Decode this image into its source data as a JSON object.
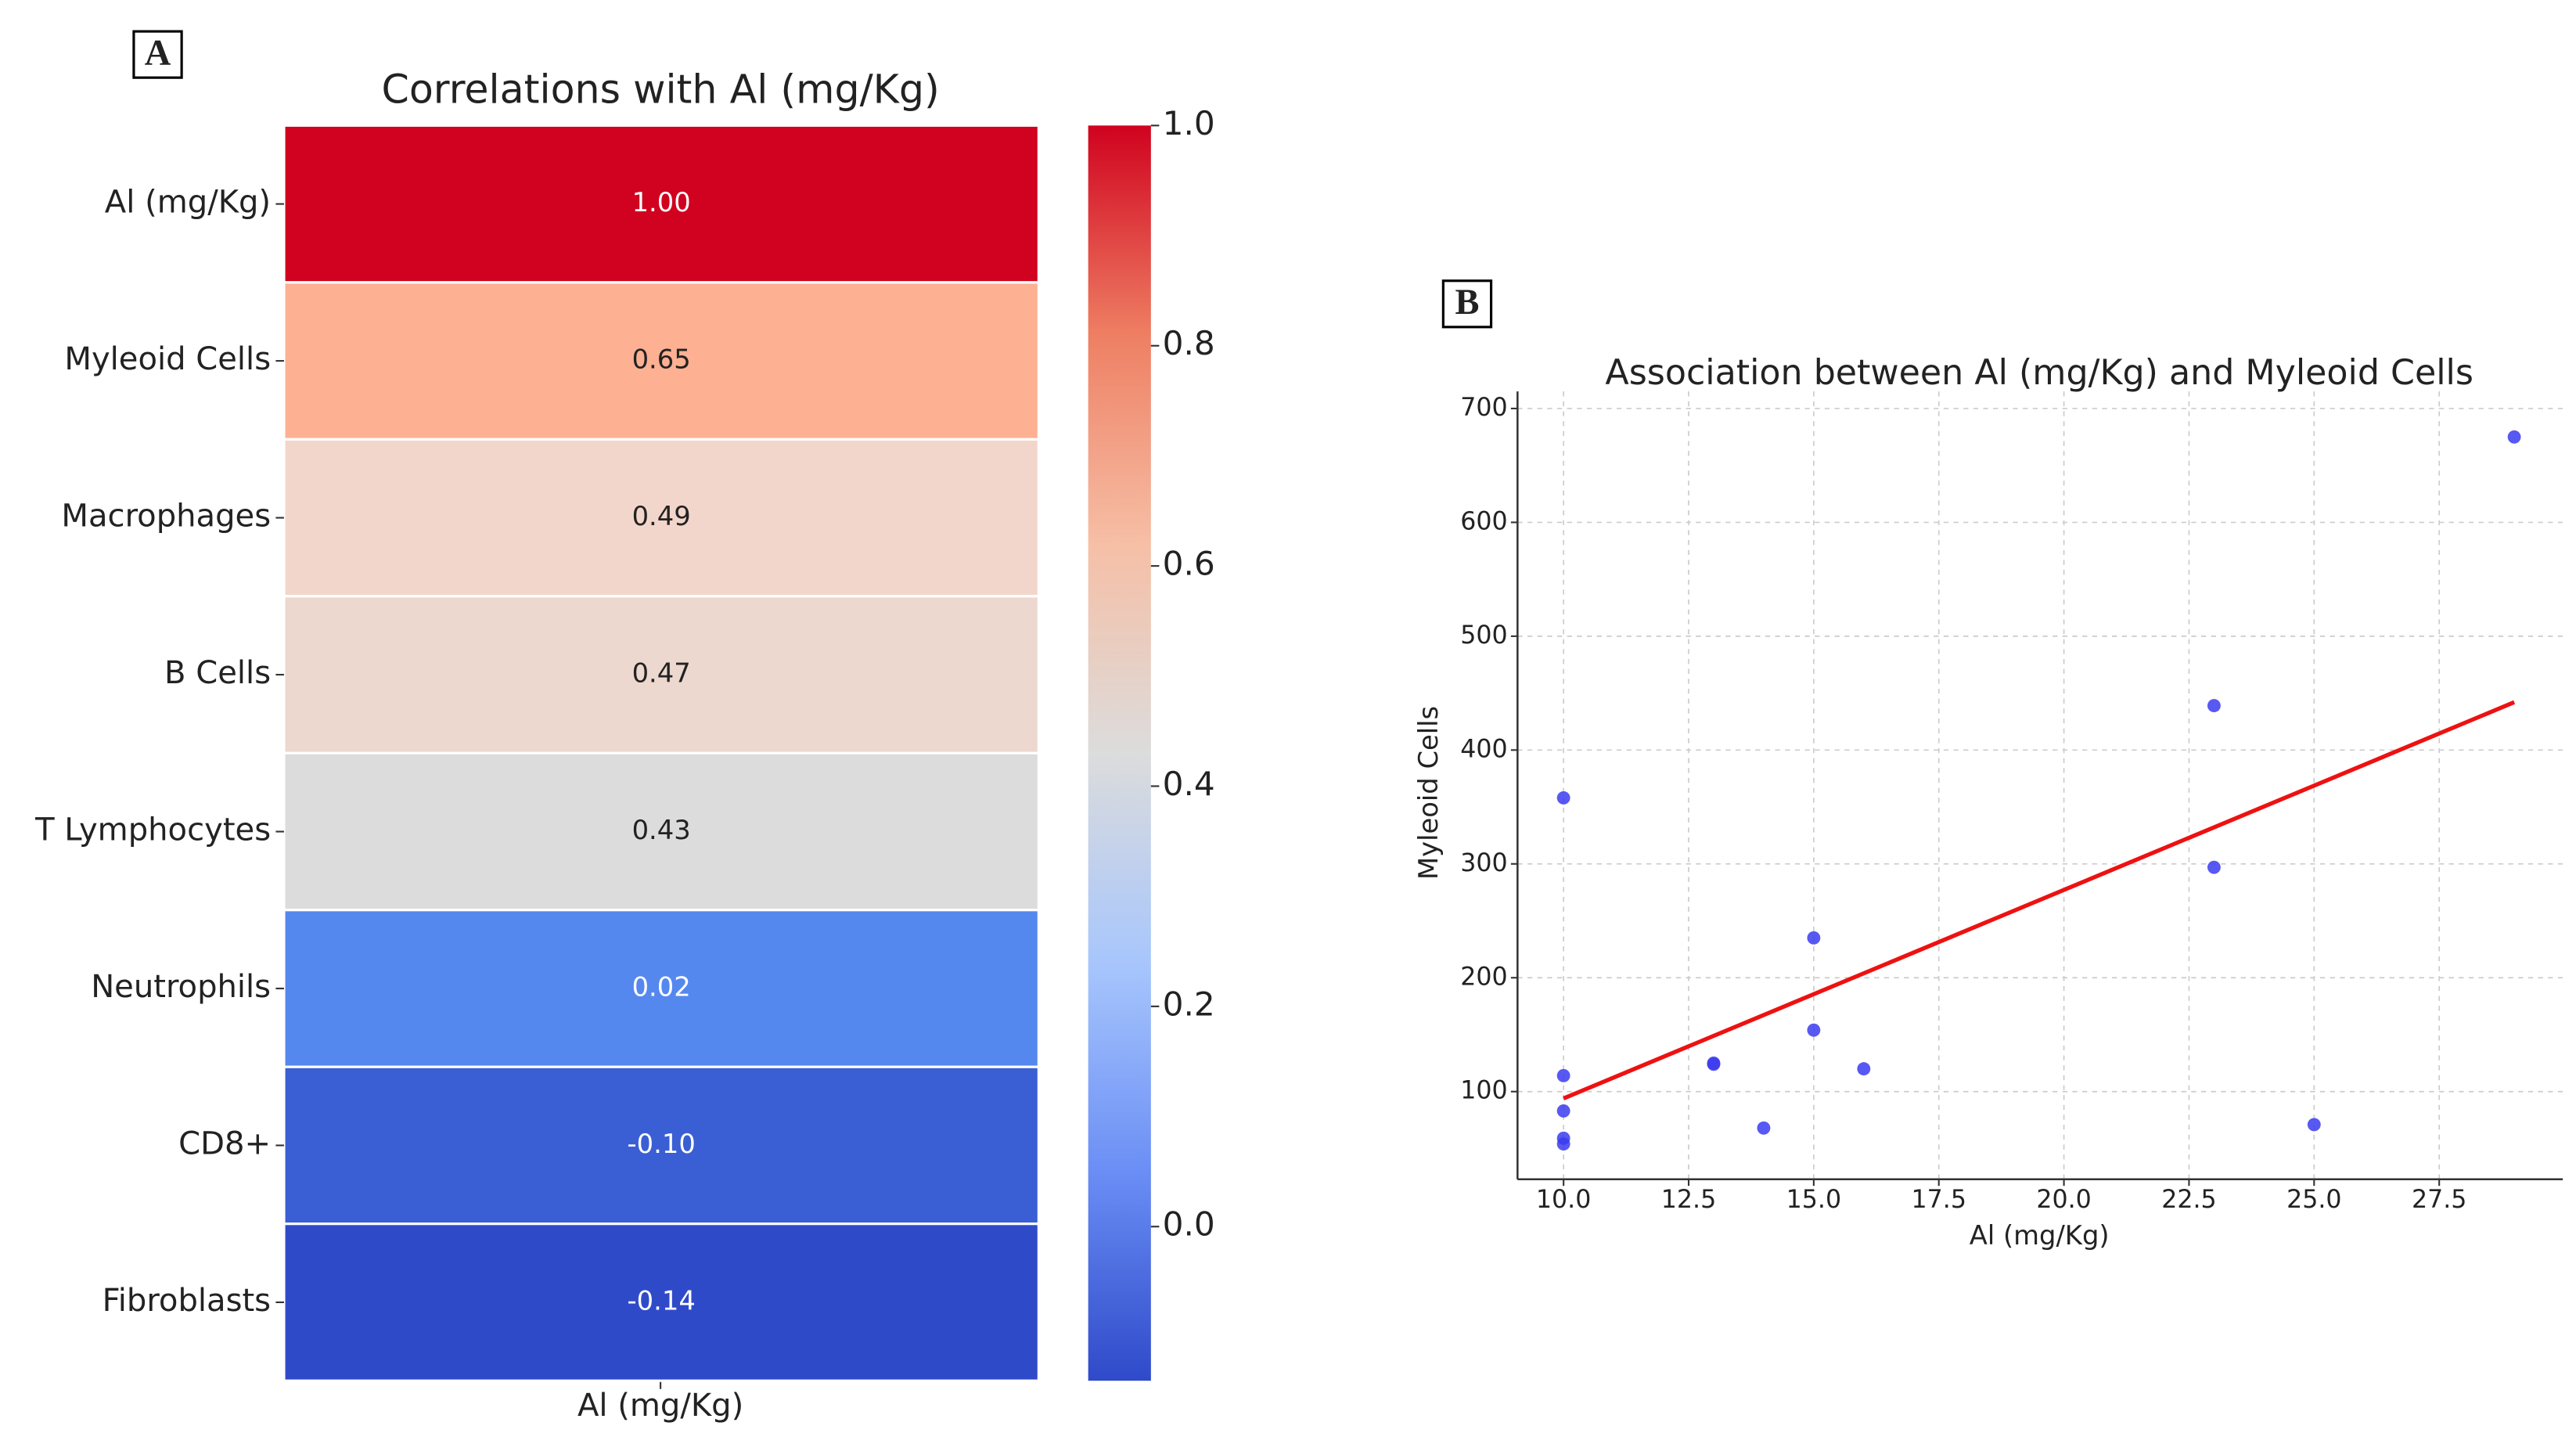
{
  "chart_data": [
    {
      "type": "heatmap",
      "panel_label": "A",
      "title": "Correlations with Al (mg/Kg)",
      "xlabel": "Al (mg/Kg)",
      "categories": [
        "Al (mg/Kg)",
        "Myleoid Cells",
        "Macrophages",
        "B Cells",
        "T Lymphocytes",
        "Neutrophils",
        "CD8+",
        "Fibroblasts"
      ],
      "values": [
        1.0,
        0.65,
        0.49,
        0.47,
        0.43,
        0.02,
        -0.1,
        -0.14
      ],
      "value_labels": [
        "1.00",
        "0.65",
        "0.49",
        "0.47",
        "0.43",
        "0.02",
        "-0.10",
        "-0.14"
      ],
      "colors": [
        "#d0021f",
        "#fdb092",
        "#f3d6cb",
        "#edd8d0",
        "#dcdcdc",
        "#5588ef",
        "#3a5ed4",
        "#2f4ac9"
      ],
      "colorbar": {
        "lim": [
          -0.14,
          1.0
        ],
        "ticks": [
          {
            "value": 0.0,
            "label": "0.0"
          },
          {
            "value": 0.2,
            "label": "0.2"
          },
          {
            "value": 0.4,
            "label": "0.4"
          },
          {
            "value": 0.6,
            "label": "0.6"
          },
          {
            "value": 0.8,
            "label": "0.8"
          },
          {
            "value": 1.0,
            "label": "1.0"
          }
        ],
        "colors": [
          "#2f4ac9",
          "#6a8ef5",
          "#a8c6fc",
          "#dcdcdc",
          "#f6bfa6",
          "#ee7f63",
          "#d0021f"
        ]
      }
    },
    {
      "type": "scatter",
      "panel_label": "B",
      "title": "Association between Al (mg/Kg) and Myleoid Cells",
      "xlabel": "Al (mg/Kg)",
      "ylabel": "Myleoid Cells",
      "x": [
        10,
        10,
        10,
        10,
        10,
        13,
        13,
        14,
        15,
        15,
        16,
        23,
        23,
        25,
        29
      ],
      "values": [
        358,
        114,
        83,
        59,
        54,
        124,
        125,
        68,
        235,
        154,
        120,
        439,
        297,
        71,
        675
      ],
      "color": "#3b3bf0",
      "trend": {
        "x": [
          10,
          29
        ],
        "y": [
          94,
          442
        ],
        "color": "#ee1111"
      },
      "xlim": [
        9.08,
        29.97
      ],
      "ylim": [
        23,
        715
      ],
      "xticks": [
        {
          "value": 10,
          "label": "10.0"
        },
        {
          "value": 12.5,
          "label": "12.5"
        },
        {
          "value": 15,
          "label": "15.0"
        },
        {
          "value": 17.5,
          "label": "17.5"
        },
        {
          "value": 20,
          "label": "20.0"
        },
        {
          "value": 22.5,
          "label": "22.5"
        },
        {
          "value": 25,
          "label": "25.0"
        },
        {
          "value": 27.5,
          "label": "27.5"
        }
      ],
      "yticks": [
        100,
        200,
        300,
        400,
        500,
        600,
        700
      ],
      "grid": true
    }
  ]
}
